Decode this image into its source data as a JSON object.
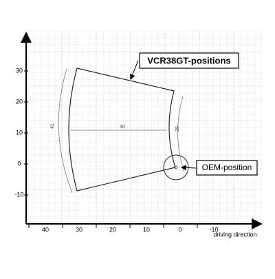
{
  "labels": {
    "vcr": "VCR38GT-positions",
    "oem": "OEM-position",
    "direction": "driving direction"
  },
  "dimensions": {
    "outer_arc": 41,
    "width": 30,
    "inner_arc": 25
  },
  "y_axis": {
    "ticks": [
      30,
      20,
      10,
      0,
      -10
    ]
  },
  "x_axis": {
    "ticks": [
      40,
      30,
      20,
      10,
      0,
      -10
    ]
  }
}
